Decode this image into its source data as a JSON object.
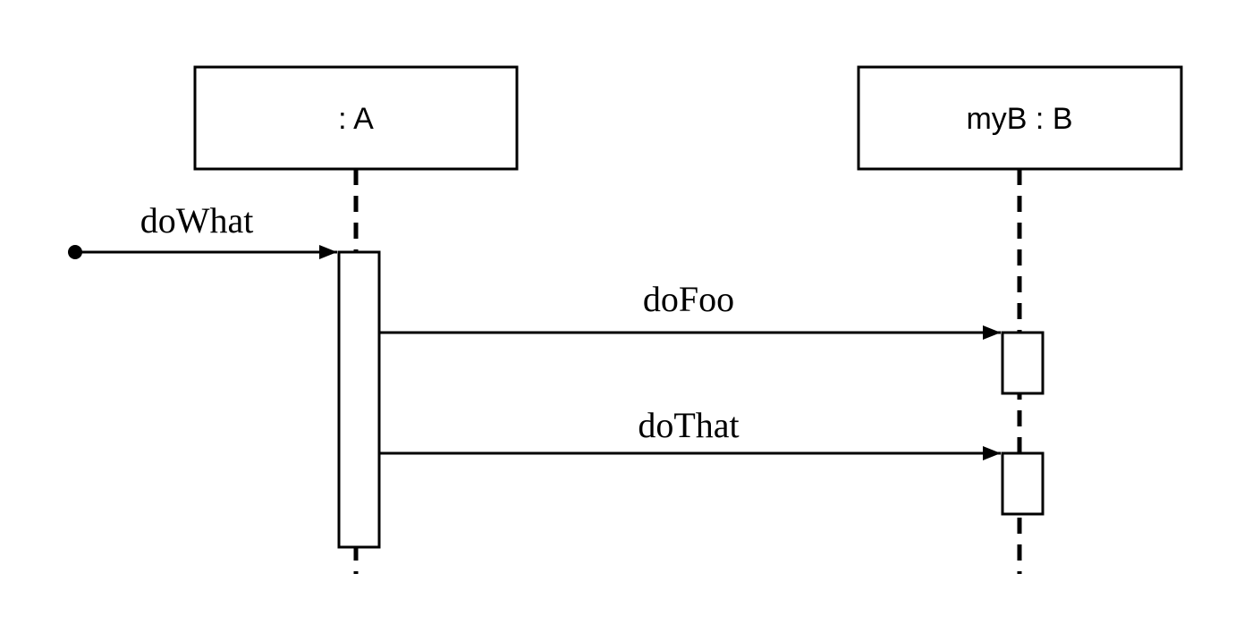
{
  "diagram": {
    "type": "sequence",
    "lifelines": [
      {
        "id": "a",
        "label": ": A"
      },
      {
        "id": "b",
        "label": "myB : B"
      }
    ],
    "messages": [
      {
        "id": "doWhat",
        "label": "doWhat",
        "from": "found",
        "to": "a"
      },
      {
        "id": "doFoo",
        "label": "doFoo",
        "from": "a",
        "to": "b"
      },
      {
        "id": "doThat",
        "label": "doThat",
        "from": "a",
        "to": "b"
      }
    ]
  }
}
